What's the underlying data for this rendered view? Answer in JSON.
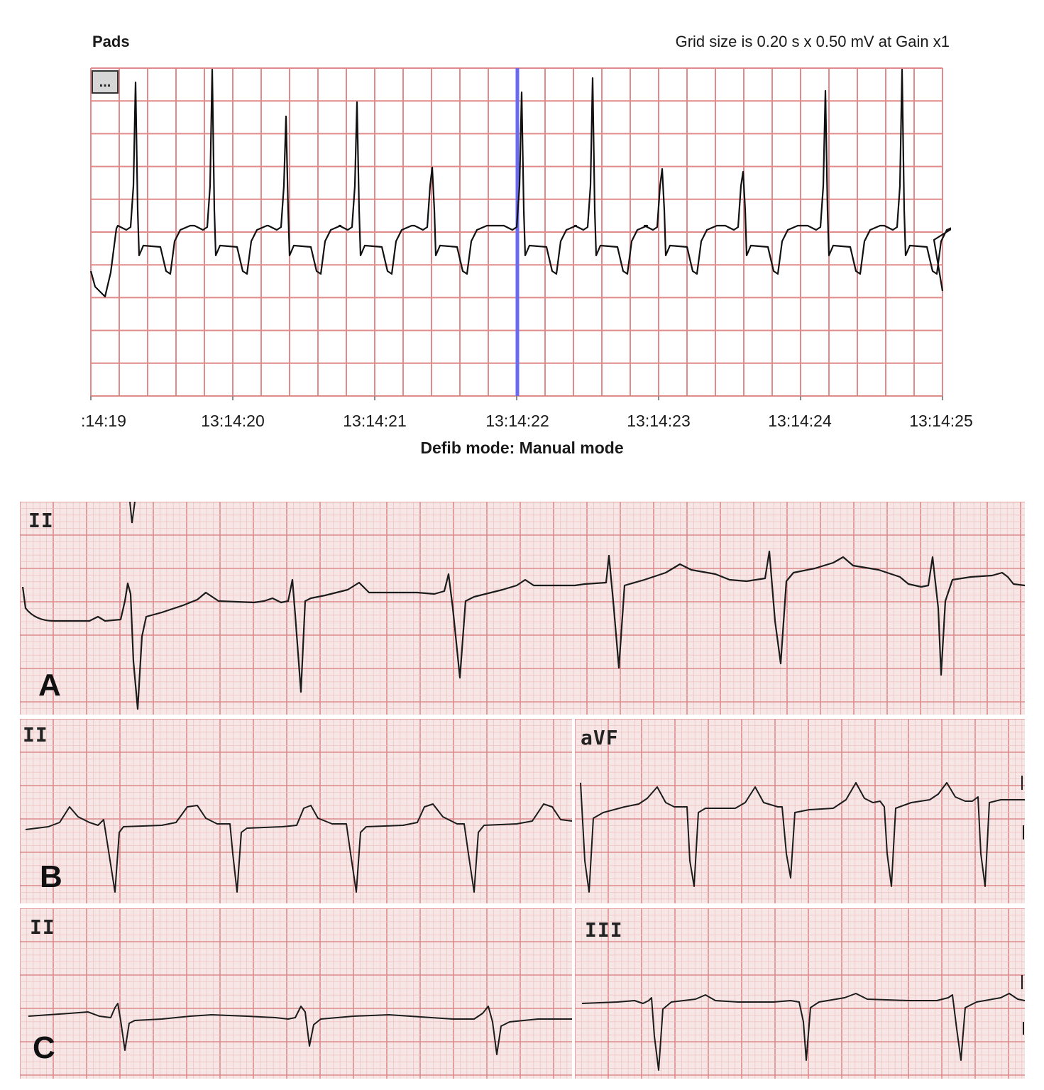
{
  "monitor": {
    "title": "Pads",
    "grid_info": "Grid size is 0.20 s x 0.50 mV at Gain x1",
    "menu_button": "...",
    "time_ticks": [
      ":14:19",
      "13:14:20",
      "13:14:21",
      "13:14:22",
      "13:14:23",
      "13:14:24",
      "13:14:25"
    ],
    "footer": "Defib mode: Manual mode",
    "colors": {
      "grid": "#e08a8a",
      "trace": "#111111",
      "cursor": "#6a6af0"
    }
  },
  "panels": {
    "A": {
      "letter": "A",
      "leads": [
        "II"
      ]
    },
    "B": {
      "letter": "B",
      "leads": [
        "II",
        "aVF"
      ]
    },
    "C": {
      "letter": "C",
      "leads": [
        "II",
        "III"
      ]
    }
  },
  "paper_colors": {
    "background": "#f6e7e6",
    "minor_grid": "#efc4c4",
    "major_grid": "#de8a8c",
    "trace": "#1c1c1c"
  }
}
